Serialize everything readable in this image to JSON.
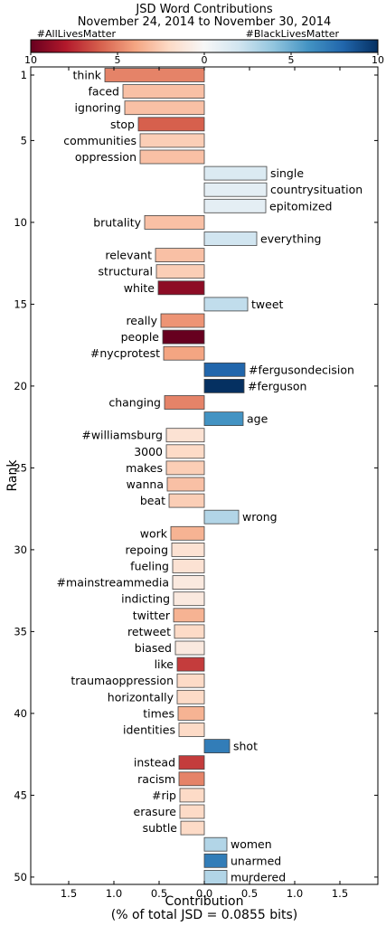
{
  "chart_data": {
    "type": "bar",
    "orientation": "horizontal",
    "title_line1": "JSD Word Contributions",
    "title_line2": "November 24, 2014 to November 30, 2014",
    "xlabel_line1": "Contribution",
    "xlabel_line2": "(% of total JSD = 0.0855 bits)",
    "ylabel": "Rank",
    "xlim": [
      -1.9,
      1.9
    ],
    "x_ticks": [
      -1.5,
      -1.0,
      -0.5,
      0.0,
      0.5,
      1.0,
      1.5
    ],
    "x_tick_labels": [
      "1.5",
      "1.0",
      "0.5",
      "0.0",
      "0.5",
      "1.0",
      "1.5"
    ],
    "y_ticks": [
      1,
      5,
      10,
      15,
      20,
      25,
      30,
      35,
      40,
      45,
      50
    ],
    "colorbar": {
      "left_label": "#AllLivesMatter",
      "right_label": "#BlackLivesMatter",
      "ticks": [
        -10,
        -5,
        0,
        5,
        10
      ],
      "tick_labels": [
        "10",
        "5",
        "0",
        "5",
        "10"
      ],
      "colormap": "RdBu",
      "stops": [
        "#67001f",
        "#b2182b",
        "#d6604d",
        "#f4a582",
        "#fddbc7",
        "#f7f7f7",
        "#d1e5f0",
        "#92c5de",
        "#4393c3",
        "#2166ac",
        "#053061"
      ]
    },
    "words": [
      "think",
      "faced",
      "ignoring",
      "stop",
      "communities",
      "oppression",
      "single",
      "countrysituation",
      "epitomized",
      "brutality",
      "everything",
      "relevant",
      "structural",
      "white",
      "tweet",
      "really",
      "people",
      "#nycprotest",
      "#fergusondecision",
      "#ferguson",
      "changing",
      "age",
      "#williamsburg",
      "3000",
      "makes",
      "wanna",
      "beat",
      "wrong",
      "work",
      "repoing",
      "fueling",
      "#mainstreammedia",
      "indicting",
      "twitter",
      "retweet",
      "biased",
      "like",
      "traumaoppression",
      "horizontally",
      "times",
      "identities",
      "shot",
      "instead",
      "racism",
      "#rip",
      "erasure",
      "subtle",
      "women",
      "unarmed",
      "murdered"
    ],
    "values": [
      -1.1,
      -0.9,
      -0.88,
      -0.73,
      -0.71,
      -0.71,
      0.69,
      0.69,
      0.68,
      -0.66,
      0.58,
      -0.54,
      -0.53,
      -0.51,
      0.48,
      -0.48,
      -0.46,
      -0.45,
      0.45,
      0.44,
      -0.44,
      0.43,
      -0.42,
      -0.42,
      -0.42,
      -0.41,
      -0.39,
      0.38,
      -0.37,
      -0.36,
      -0.35,
      -0.35,
      -0.34,
      -0.34,
      -0.33,
      -0.32,
      -0.3,
      -0.3,
      -0.3,
      -0.29,
      -0.28,
      0.28,
      -0.28,
      -0.28,
      -0.27,
      -0.27,
      -0.26,
      0.25,
      0.25,
      0.25
    ],
    "color_values": [
      -5.0,
      -3.0,
      -3.0,
      -6.0,
      -2.5,
      -3.0,
      1.5,
      1.0,
      1.0,
      -3.0,
      2.0,
      -3.0,
      -2.5,
      -9.0,
      2.5,
      -4.5,
      -10.0,
      -4.0,
      8.0,
      10.0,
      -5.0,
      6.0,
      -1.5,
      -2.0,
      -2.5,
      -3.0,
      -2.5,
      3.0,
      -3.5,
      -1.5,
      -1.5,
      -1.0,
      -1.0,
      -3.5,
      -2.0,
      -1.0,
      -7.0,
      -2.0,
      -2.0,
      -3.5,
      -2.0,
      7.0,
      -7.0,
      -5.0,
      -2.0,
      -2.0,
      -2.0,
      3.0,
      7.0,
      3.0
    ]
  }
}
